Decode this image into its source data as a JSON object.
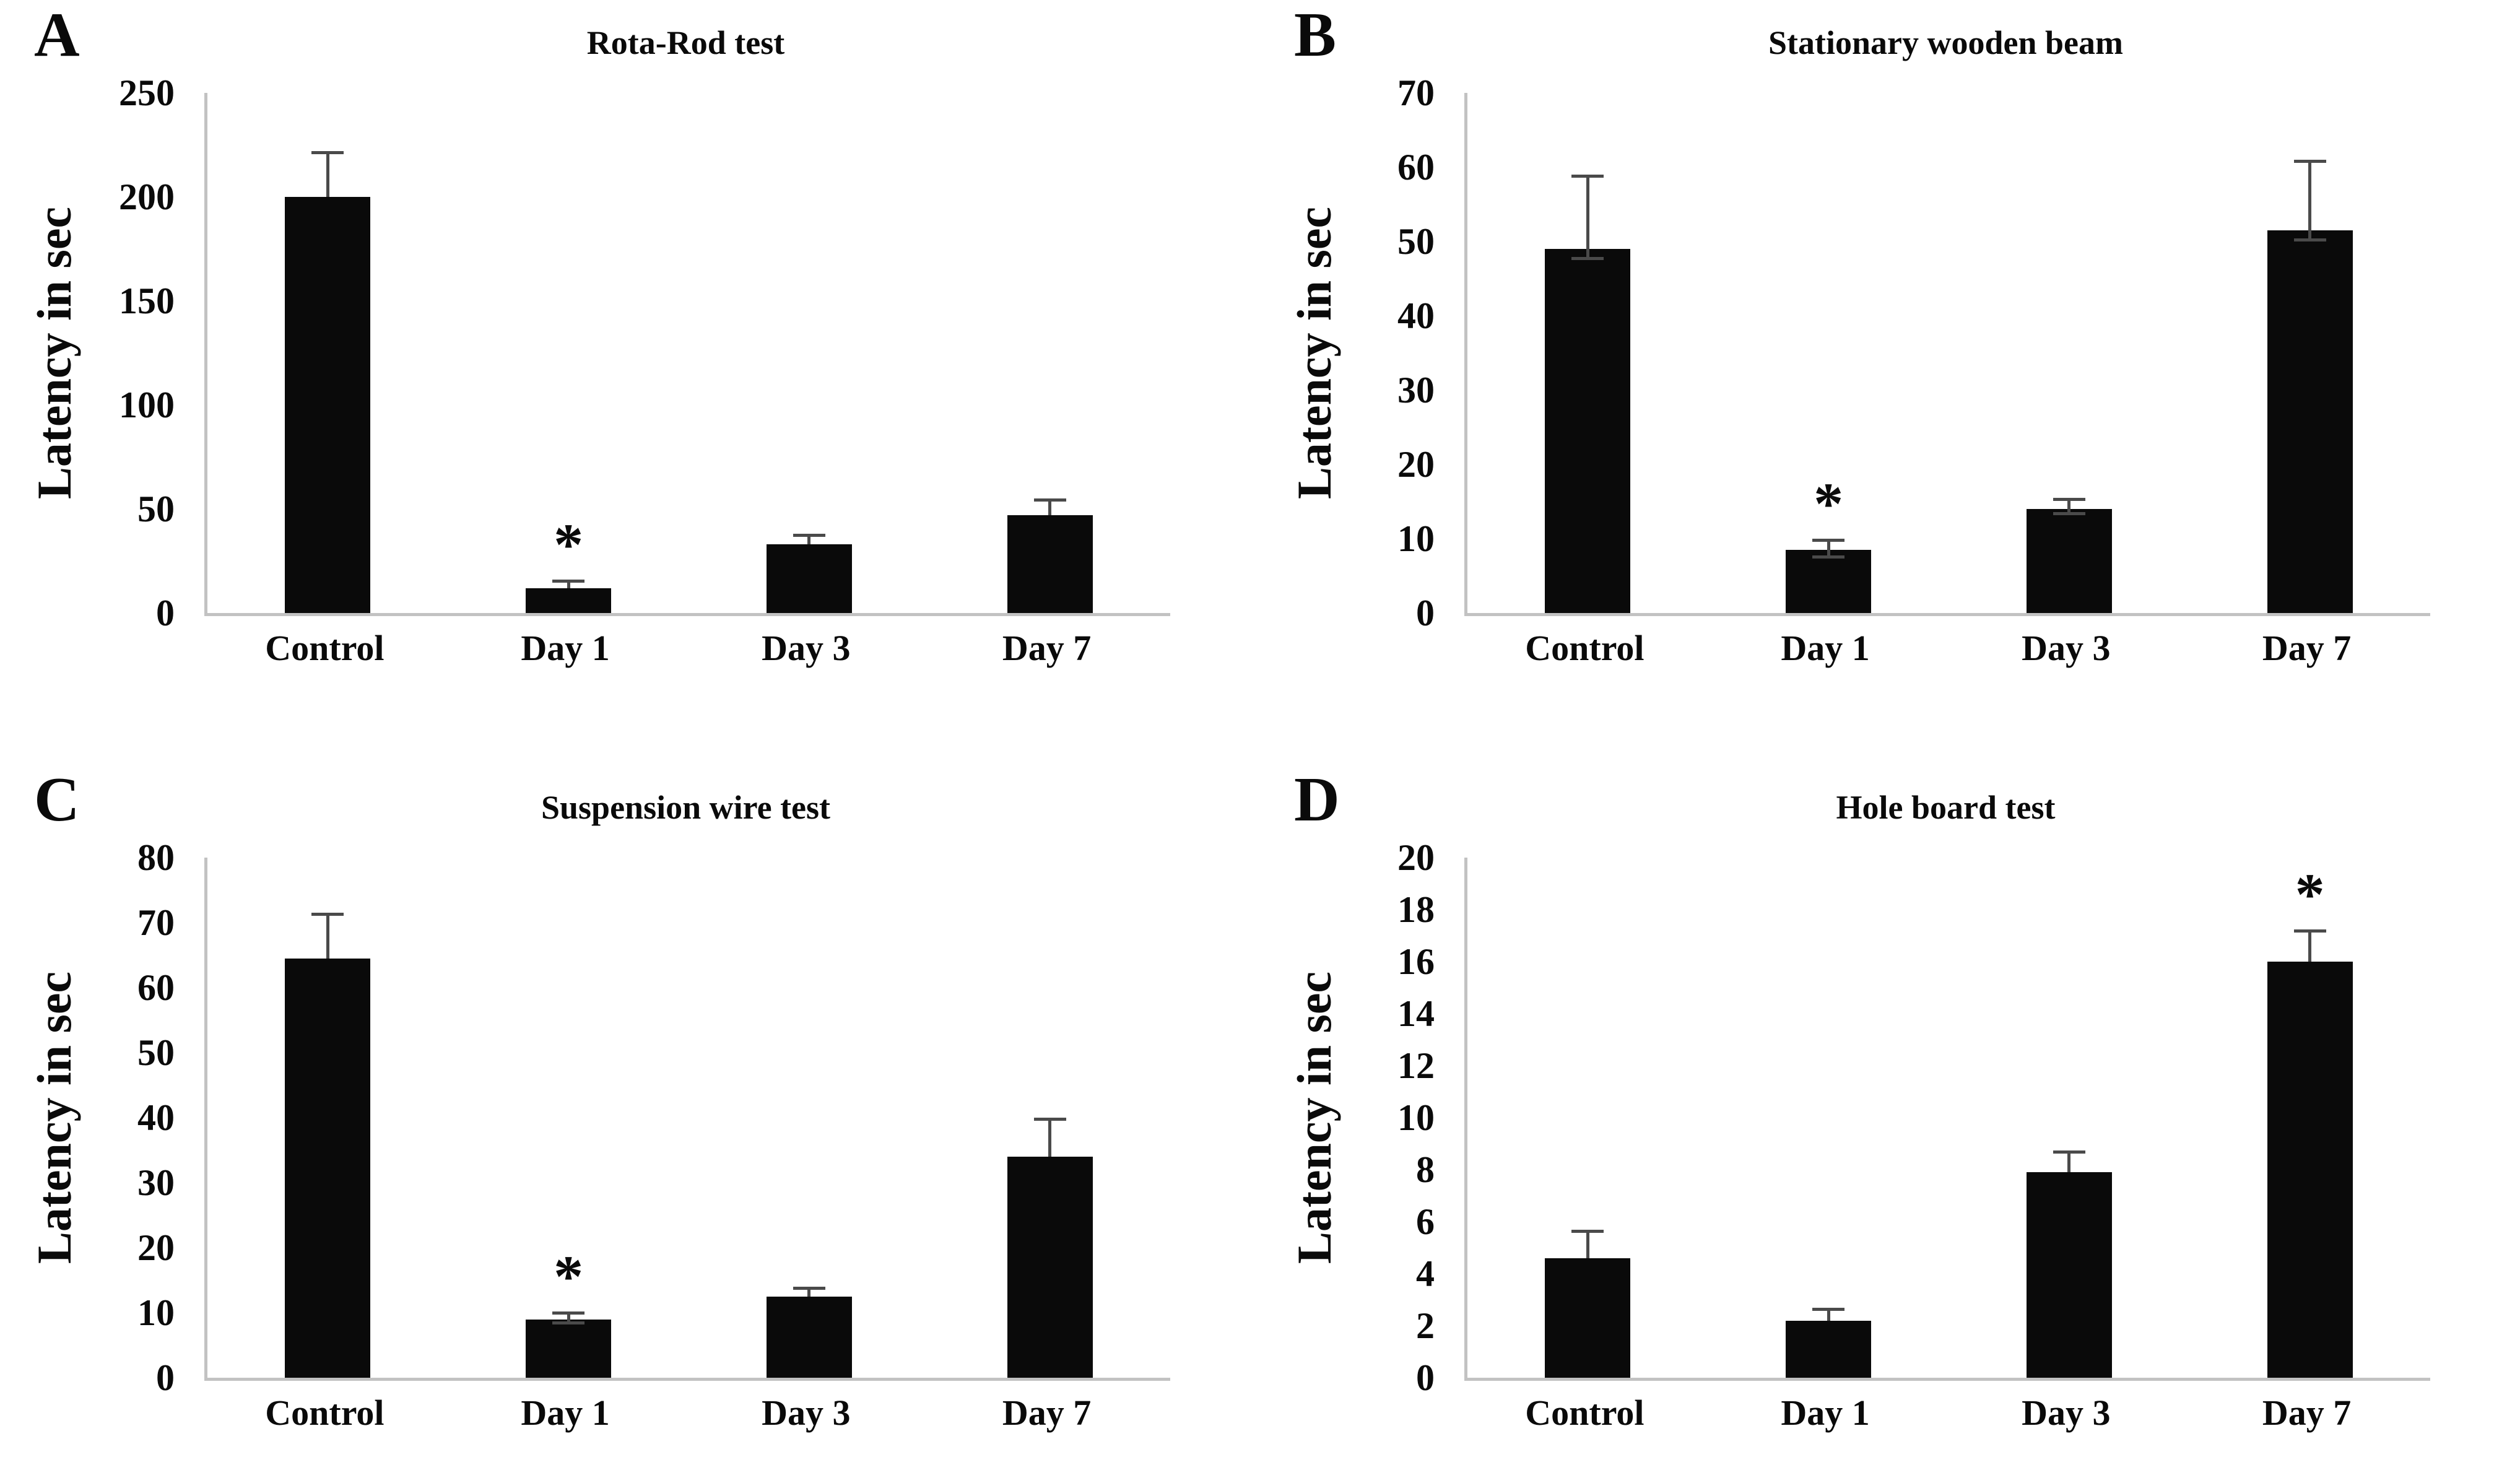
{
  "figure": {
    "background_color": "#ffffff",
    "bar_color": "#0a0a0a",
    "axis_color": "#c2c2c2",
    "error_bar_color": "#4a4a4a",
    "significance_marker": "*"
  },
  "chart_data": [
    {
      "type": "bar",
      "panel_letter": "A",
      "title": "Rota-Rod test",
      "ylabel": "Latency in sec",
      "xlabel": "",
      "ylim": [
        0,
        250
      ],
      "ytick_step": 50,
      "grid": false,
      "legend": "none",
      "categories": [
        "Control",
        "Day 1",
        "Day 3",
        "Day 7"
      ],
      "values": [
        200,
        12,
        33,
        47
      ],
      "errors_up": [
        22,
        4,
        5,
        8
      ],
      "errors_down": [
        0,
        0,
        0,
        0
      ],
      "significant": [
        false,
        true,
        false,
        false
      ]
    },
    {
      "type": "bar",
      "panel_letter": "B",
      "title": "Stationary wooden beam",
      "ylabel": "Latency in sec",
      "xlabel": "",
      "ylim": [
        0,
        70
      ],
      "ytick_step": 10,
      "grid": false,
      "legend": "none",
      "categories": [
        "Control",
        "Day 1",
        "Day 3",
        "Day 7"
      ],
      "values": [
        49,
        8.5,
        14,
        51.5
      ],
      "errors_up": [
        10,
        1.5,
        1.5,
        9.5
      ],
      "errors_down": [
        1.5,
        1.2,
        0.8,
        1.5
      ],
      "significant": [
        false,
        true,
        false,
        false
      ]
    },
    {
      "type": "bar",
      "panel_letter": "C",
      "title": "Suspension wire test",
      "ylabel": "Latency in sec",
      "xlabel": "",
      "ylim": [
        0,
        80
      ],
      "ytick_step": 10,
      "grid": false,
      "legend": "none",
      "categories": [
        "Control",
        "Day 1",
        "Day 3",
        "Day 7"
      ],
      "values": [
        64.5,
        9,
        12.5,
        34
      ],
      "errors_up": [
        7,
        1.2,
        1.5,
        6
      ],
      "errors_down": [
        0,
        0.8,
        0,
        0
      ],
      "significant": [
        false,
        true,
        false,
        false
      ]
    },
    {
      "type": "bar",
      "panel_letter": "D",
      "title": "Hole board test",
      "ylabel": "Latency in sec",
      "xlabel": "",
      "ylim": [
        0,
        20
      ],
      "ytick_step": 2,
      "grid": false,
      "legend": "none",
      "categories": [
        "Control",
        "Day 1",
        "Day 3",
        "Day 7"
      ],
      "values": [
        4.6,
        2.2,
        7.9,
        16
      ],
      "errors_up": [
        1.1,
        0.5,
        0.85,
        1.25
      ],
      "errors_down": [
        0,
        0,
        0,
        0
      ],
      "significant": [
        false,
        false,
        false,
        true
      ]
    }
  ]
}
